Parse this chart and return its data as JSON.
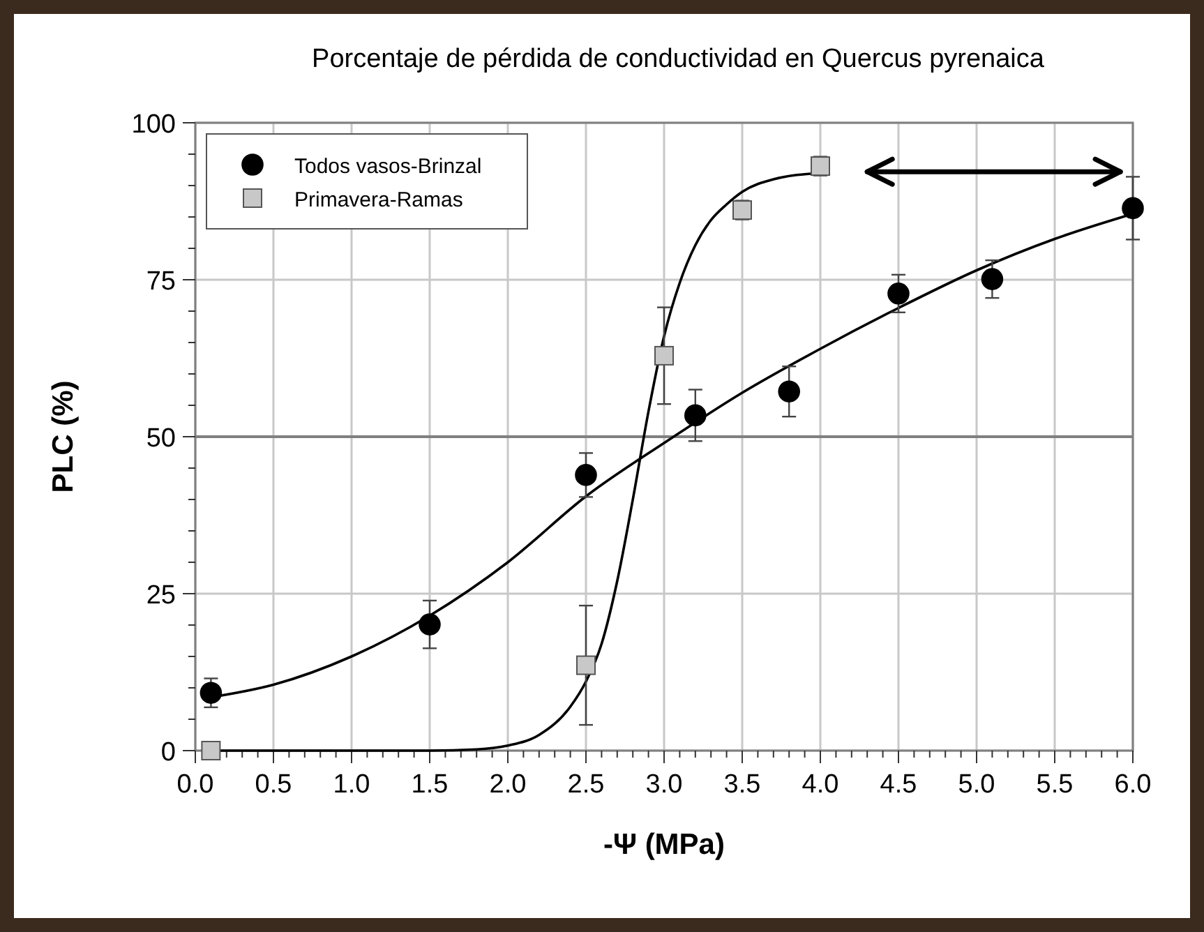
{
  "chart_data": {
    "type": "scatter",
    "title": "Porcentaje de pérdida de conductividad en Quercus pyrenaica",
    "xlabel": "-Ψ (MPa)",
    "ylabel": "PLC (%)",
    "xlim": [
      0,
      6
    ],
    "ylim": [
      0,
      100
    ],
    "xticks": [
      {
        "value": 0,
        "label": "0.0"
      },
      {
        "value": 0.5,
        "label": "0.5"
      },
      {
        "value": 1,
        "label": "1.0"
      },
      {
        "value": 1.5,
        "label": "1.5"
      },
      {
        "value": 2,
        "label": "2.0"
      },
      {
        "value": 2.5,
        "label": "2.5"
      },
      {
        "value": 3,
        "label": "3.0"
      },
      {
        "value": 3.5,
        "label": "3.5"
      },
      {
        "value": 4,
        "label": "4.0"
      },
      {
        "value": 4.5,
        "label": "4.5"
      },
      {
        "value": 5,
        "label": "5.0"
      },
      {
        "value": 5.5,
        "label": "5.5"
      },
      {
        "value": 6,
        "label": "6.0"
      }
    ],
    "yticks": [
      0,
      25,
      50,
      75,
      100
    ],
    "grid": true,
    "legend": "top left",
    "ref_lines": [
      {
        "axis": "y",
        "value": 50,
        "label": null,
        "color": "#808080"
      }
    ],
    "series": [
      {
        "name": "Todos vasos-Brinzal",
        "marker": "circle",
        "color": "#000000",
        "x": [
          0.1,
          1.5,
          2.5,
          3.2,
          3.8,
          4.5,
          5.1,
          6.0
        ],
        "values": [
          9.2,
          20.1,
          43.9,
          53.4,
          57.2,
          72.8,
          75.1,
          86.4
        ],
        "errors": [
          2.3,
          3.8,
          3.5,
          4.1,
          4,
          3,
          3,
          5
        ]
      },
      {
        "name": "Primavera-Ramas",
        "marker": "square",
        "color": "#c8c8c8",
        "x": [
          0.1,
          2.5,
          3.0,
          3.5,
          4.0
        ],
        "values": [
          0,
          13.6,
          62.9,
          86.1,
          93.1
        ],
        "errors": [
          null,
          9.5,
          7.7,
          1.5,
          1.5
        ]
      },
      {
        "type": "line",
        "color": "#000000",
        "x": [
          0.1,
          0.5,
          1.0,
          1.5,
          2.0,
          2.5,
          3.0,
          3.5,
          4.0,
          4.5,
          5.0,
          5.5,
          6.0
        ],
        "values": [
          8.5,
          10.5,
          15,
          21.5,
          30,
          40.5,
          49,
          57,
          64,
          70.5,
          76.5,
          81.5,
          85.5
        ]
      },
      {
        "type": "line",
        "color": "#000000",
        "x": [
          0.1,
          1.5,
          1.8,
          2.0,
          2.2,
          2.4,
          2.5,
          2.6,
          2.7,
          2.8,
          2.9,
          3.0,
          3.1,
          3.2,
          3.3,
          3.4,
          3.5,
          3.7,
          4.0
        ],
        "values": [
          0,
          0,
          0.2,
          0.8,
          2.5,
          7,
          11,
          17,
          27,
          40,
          54,
          66,
          74.5,
          80.5,
          84.5,
          87,
          89,
          91,
          92
        ]
      }
    ]
  }
}
